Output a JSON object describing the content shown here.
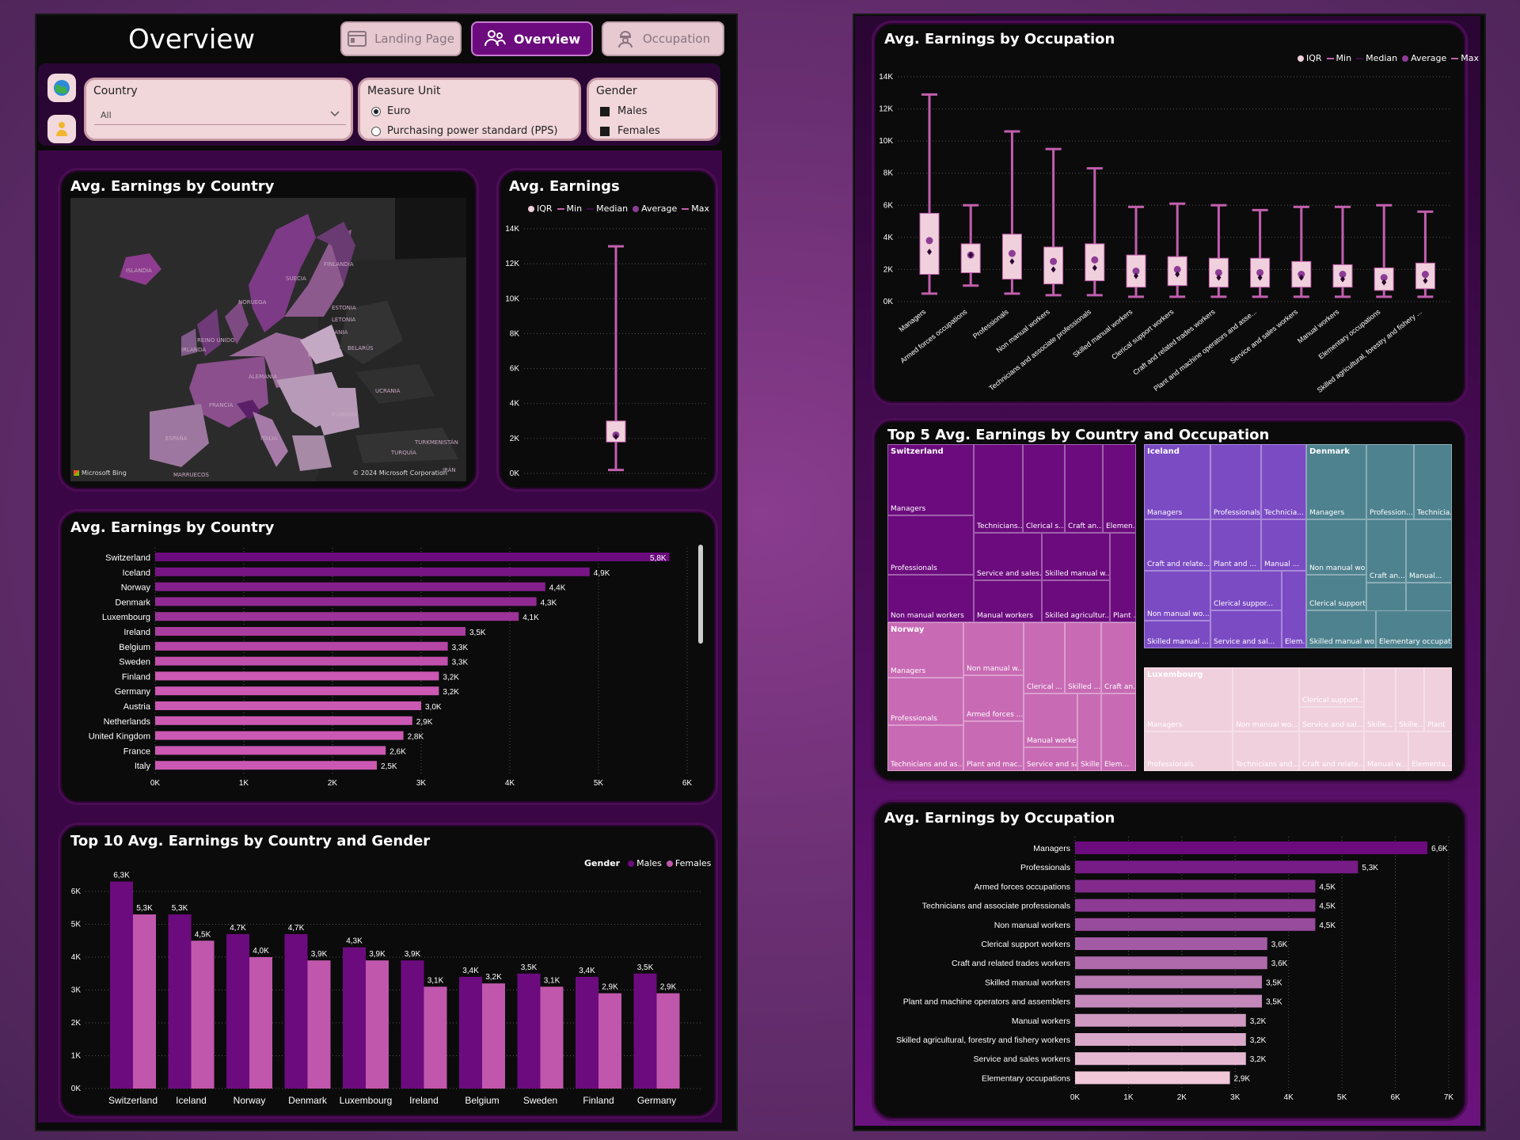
{
  "header": {
    "title": "Overview",
    "nav": [
      {
        "label": "Landing Page",
        "icon": "browser-window-icon"
      },
      {
        "label": "Overview",
        "icon": "people-icon",
        "active": true
      },
      {
        "label": "Occupation",
        "icon": "worker-icon"
      }
    ]
  },
  "filters": {
    "country": {
      "label": "Country",
      "value": "All"
    },
    "measure": {
      "label": "Measure Unit",
      "options": [
        "Euro",
        "Purchasing power standard (PPS)"
      ],
      "selected": "Euro"
    },
    "gender": {
      "label": "Gender",
      "options": [
        "Males",
        "Females"
      ]
    }
  },
  "map": {
    "title": "Avg. Earnings by Country",
    "credit_left": "Microsoft Bing",
    "credit_right": "© 2024 Microsoft Corporation",
    "labels": [
      {
        "t": "ISLANDIA"
      },
      {
        "t": "SUECIA"
      },
      {
        "t": "NORUEGA"
      },
      {
        "t": "FINLANDIA"
      },
      {
        "t": "ESTONIA"
      },
      {
        "t": "LETONIA"
      },
      {
        "t": "LITUANIA"
      },
      {
        "t": "BELARÚS"
      },
      {
        "t": "POLONIA"
      },
      {
        "t": "ALEMANIA"
      },
      {
        "t": "FRANCIA"
      },
      {
        "t": "ESPAÑA"
      },
      {
        "t": "ITALIA"
      },
      {
        "t": "UCRANIA"
      },
      {
        "t": "RUMANÍA"
      },
      {
        "t": "TURQUÍA"
      },
      {
        "t": "MARRUECOS"
      },
      {
        "t": "TURKMENISTÁN"
      },
      {
        "t": "IRÁN"
      },
      {
        "t": "IRLANDA"
      },
      {
        "t": "REINO UNIDO"
      }
    ]
  },
  "legend_box": [
    "IQR",
    "Min",
    "Median",
    "Average",
    "Max"
  ],
  "legend_gender": {
    "title": "Gender",
    "items": [
      "Males",
      "Females"
    ]
  },
  "colors": {
    "dark_purple": "#6c0b7e",
    "mid_pink": "#c157ad",
    "light_pink": "#f0d0dc",
    "whisker": "#c25eae"
  },
  "chart_data": [
    {
      "id": "avg_earnings_box",
      "type": "box",
      "title": "Avg. Earnings",
      "ylim": [
        0,
        14000
      ],
      "yticks": [
        "0K",
        "2K",
        "4K",
        "6K",
        "8K",
        "10K",
        "12K",
        "14K"
      ],
      "box": {
        "min": 200,
        "q1": 1800,
        "median": 2100,
        "q3": 3000,
        "average": 2200,
        "max": 13000
      }
    },
    {
      "id": "country_bar",
      "type": "bar",
      "orientation": "horizontal",
      "title": "Avg. Earnings by Country",
      "xlim": [
        0,
        6000
      ],
      "xticks": [
        "0K",
        "1K",
        "2K",
        "3K",
        "4K",
        "5K",
        "6K"
      ],
      "categories": [
        "Switzerland",
        "Iceland",
        "Norway",
        "Denmark",
        "Luxembourg",
        "Ireland",
        "Belgium",
        "Sweden",
        "Finland",
        "Germany",
        "Austria",
        "Netherlands",
        "United Kingdom",
        "France",
        "Italy"
      ],
      "values": [
        5800,
        4900,
        4400,
        4300,
        4100,
        3500,
        3300,
        3300,
        3200,
        3200,
        3000,
        2900,
        2800,
        2600,
        2500
      ],
      "labels": [
        "5,8K",
        "4,9K",
        "4,4K",
        "4,3K",
        "4,1K",
        "3,5K",
        "3,3K",
        "3,3K",
        "3,2K",
        "3,2K",
        "3,0K",
        "2,9K",
        "2,8K",
        "2,6K",
        "2,5K"
      ]
    },
    {
      "id": "gender_bar",
      "type": "bar",
      "title": "Top 10 Avg. Earnings by Country and Gender",
      "ylim": [
        0,
        6500
      ],
      "yticks": [
        "0K",
        "1K",
        "2K",
        "3K",
        "4K",
        "5K",
        "6K"
      ],
      "categories": [
        "Switzerland",
        "Iceland",
        "Norway",
        "Denmark",
        "Luxembourg",
        "Ireland",
        "Belgium",
        "Sweden",
        "Finland",
        "Germany"
      ],
      "series": [
        {
          "name": "Males",
          "values": [
            6300,
            5300,
            4700,
            4700,
            4300,
            3900,
            3400,
            3500,
            3400,
            3500
          ],
          "labels": [
            "6,3K",
            "5,3K",
            "4,7K",
            "4,7K",
            "4,3K",
            "3,9K",
            "3,4K",
            "3,5K",
            "3,4K",
            "3,5K"
          ]
        },
        {
          "name": "Females",
          "values": [
            5300,
            4500,
            4000,
            3900,
            3900,
            3100,
            3200,
            3100,
            2900,
            2900
          ],
          "labels": [
            "5,3K",
            "4,5K",
            "4,0K",
            "3,9K",
            "3,9K",
            "3,1K",
            "3,2K",
            "3,1K",
            "2,9K",
            "2,9K"
          ]
        }
      ]
    },
    {
      "id": "occupation_box",
      "type": "box",
      "title": "Avg. Earnings by Occupation",
      "ylim": [
        0,
        14000
      ],
      "yticks": [
        "0K",
        "2K",
        "4K",
        "6K",
        "8K",
        "10K",
        "12K",
        "14K"
      ],
      "categories": [
        "Managers",
        "Armed forces occupations",
        "Professionals",
        "Non manual workers",
        "Technicians and associate professionals",
        "Skilled manual workers",
        "Clerical support workers",
        "Craft and related trades workers",
        "Plant and machine operators and asse...",
        "Service and sales workers",
        "Manual workers",
        "Elementary occupations",
        "Skilled agricultural, forestry and fishery ..."
      ],
      "boxes": [
        {
          "min": 500,
          "q1": 1700,
          "median": 3100,
          "q3": 5500,
          "average": 3800,
          "max": 12900
        },
        {
          "min": 1000,
          "q1": 1800,
          "median": 2900,
          "q3": 3600,
          "average": 2900,
          "max": 6000
        },
        {
          "min": 500,
          "q1": 1400,
          "median": 2500,
          "q3": 4200,
          "average": 3000,
          "max": 10600
        },
        {
          "min": 400,
          "q1": 1100,
          "median": 2000,
          "q3": 3400,
          "average": 2500,
          "max": 9500
        },
        {
          "min": 400,
          "q1": 1300,
          "median": 2100,
          "q3": 3600,
          "average": 2600,
          "max": 8300
        },
        {
          "min": 300,
          "q1": 900,
          "median": 1600,
          "q3": 2900,
          "average": 1900,
          "max": 5900
        },
        {
          "min": 300,
          "q1": 1000,
          "median": 1700,
          "q3": 2800,
          "average": 2000,
          "max": 6100
        },
        {
          "min": 300,
          "q1": 900,
          "median": 1500,
          "q3": 2700,
          "average": 1800,
          "max": 6000
        },
        {
          "min": 300,
          "q1": 900,
          "median": 1500,
          "q3": 2700,
          "average": 1800,
          "max": 5700
        },
        {
          "min": 300,
          "q1": 900,
          "median": 1500,
          "q3": 2500,
          "average": 1700,
          "max": 5900
        },
        {
          "min": 300,
          "q1": 900,
          "median": 1400,
          "q3": 2300,
          "average": 1700,
          "max": 5900
        },
        {
          "min": 300,
          "q1": 700,
          "median": 1200,
          "q3": 2100,
          "average": 1500,
          "max": 6000
        },
        {
          "min": 300,
          "q1": 800,
          "median": 1300,
          "q3": 2400,
          "average": 1700,
          "max": 5600
        }
      ]
    },
    {
      "id": "treemap",
      "type": "treemap",
      "title": "Top 5 Avg. Earnings by Country and Occupation",
      "groups": [
        {
          "name": "Switzerland",
          "color": "#6c0b7e",
          "cells": [
            "Managers",
            "Technicians...",
            "Clerical s...",
            "Craft an...",
            "Elemen...",
            "Professionals",
            "Service and sales...",
            "Skilled manual w...",
            "Non manual workers",
            "Manual workers",
            "Skilled agricultur...",
            "Plant ..."
          ]
        },
        {
          "name": "Iceland",
          "color": "#7b4bc4",
          "cells": [
            "Managers",
            "Professionals",
            "Technicia...",
            "Craft and relate...",
            "Plant and ...",
            "Manual ...",
            "Non manual wo...",
            "Clerical suppor...",
            "Skilled manual ...",
            "Service and sal...",
            "Elem..."
          ]
        },
        {
          "name": "Denmark",
          "color": "#4e828f",
          "cells": [
            "Managers",
            "Profession...",
            "Technicia...",
            "Non manual work...",
            "Clerical support w...",
            "Craft an...",
            "Manual...",
            "Plant and machine...",
            "Skilled a...",
            "Service ...",
            "Skilled manual wo...",
            "Elementary occupat..."
          ]
        },
        {
          "name": "Norway",
          "color": "#c86ab4",
          "cells": [
            "Managers",
            "Non manual w...",
            "Clerical ...",
            "Skilled ...",
            "Craft an...",
            "Professionals",
            "Armed forces ...",
            "Manual workers",
            "Technicians and as...",
            "Plant and mac...",
            "Service and sal...",
            "Skille...",
            "Elem..."
          ]
        },
        {
          "name": "Luxembourg",
          "color": "#f0d0dc",
          "cells": [
            "Managers",
            "Non manual wo...",
            "Clerical support...",
            "Service and sal...",
            "Skille...",
            "Skille...",
            "Plant",
            "Professionals",
            "Technicians and...",
            "Craft and relate...",
            "Manual w...",
            "Elementa..."
          ]
        }
      ]
    },
    {
      "id": "occupation_bar",
      "type": "bar",
      "orientation": "horizontal",
      "title": "Avg. Earnings by Occupation",
      "xlim": [
        0,
        7000
      ],
      "xticks": [
        "0K",
        "1K",
        "2K",
        "3K",
        "4K",
        "5K",
        "6K",
        "7K"
      ],
      "categories": [
        "Managers",
        "Professionals",
        "Armed forces occupations",
        "Technicians and associate professionals",
        "Non manual workers",
        "Clerical support workers",
        "Craft and related trades workers",
        "Skilled manual workers",
        "Plant and machine operators and assemblers",
        "Manual workers",
        "Skilled agricultural, forestry and fishery workers",
        "Service and sales workers",
        "Elementary occupations"
      ],
      "values": [
        6600,
        5300,
        4500,
        4500,
        4500,
        3600,
        3600,
        3500,
        3500,
        3200,
        3200,
        3200,
        2900
      ],
      "labels": [
        "6,6K",
        "5,3K",
        "4,5K",
        "4,5K",
        "4,5K",
        "3,6K",
        "3,6K",
        "3,5K",
        "3,5K",
        "3,2K",
        "3,2K",
        "3,2K",
        "2,9K"
      ]
    }
  ]
}
